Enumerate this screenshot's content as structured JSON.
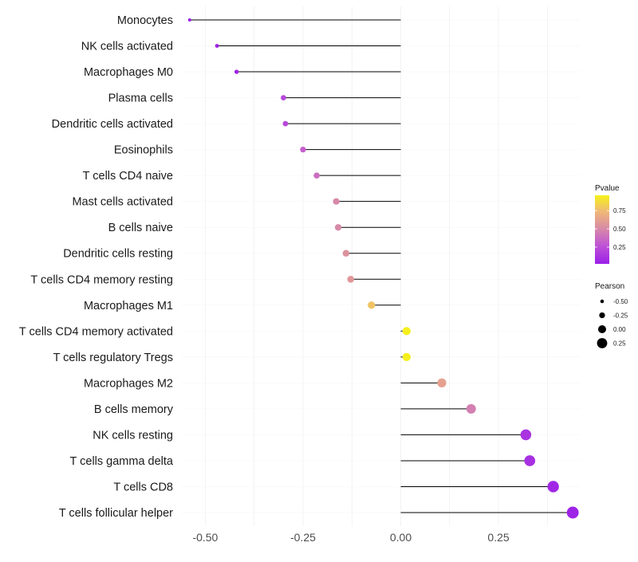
{
  "chart_data": {
    "type": "lollipop",
    "title": "",
    "xlabel": "",
    "ylabel": "",
    "xlim": [
      -0.56,
      0.46
    ],
    "x_ticks": [
      -0.5,
      -0.25,
      0.0,
      0.25
    ],
    "x_tick_labels": [
      "-0.50",
      "-0.25",
      "0.00",
      "0.25"
    ],
    "grid": true,
    "categories": [
      "Monocytes",
      "NK cells activated",
      "Macrophages M0",
      "Plasma cells",
      "Dendritic cells activated",
      "Eosinophils",
      "T cells CD4 naive",
      "Mast cells activated",
      "B cells naive",
      "Dendritic cells resting",
      "T cells CD4 memory resting",
      "Macrophages M1",
      "T cells CD4 memory activated",
      "T cells regulatory  Tregs ",
      "Macrophages M2",
      "B cells memory",
      "NK cells resting",
      "T cells gamma delta",
      "T cells CD8",
      "T cells follicular helper"
    ],
    "pearson": [
      -0.54,
      -0.47,
      -0.42,
      -0.3,
      -0.295,
      -0.25,
      -0.215,
      -0.165,
      -0.16,
      -0.14,
      -0.128,
      -0.075,
      0.015,
      0.015,
      0.105,
      0.18,
      0.32,
      0.33,
      0.39,
      0.44
    ],
    "pvalue": [
      0.03,
      0.04,
      0.05,
      0.22,
      0.22,
      0.32,
      0.38,
      0.5,
      0.5,
      0.55,
      0.57,
      0.78,
      0.95,
      0.95,
      0.62,
      0.46,
      0.12,
      0.1,
      0.06,
      0.04
    ],
    "legends": {
      "color": {
        "title": "Pvalue",
        "ticks": [
          0.75,
          0.5,
          0.25
        ],
        "tick_labels": [
          "0.75",
          "0.50",
          "0.25"
        ],
        "range": [
          0.02,
          0.96
        ],
        "colors": [
          "#9B1FE8",
          "#F5F219"
        ]
      },
      "size": {
        "title": "Pearson",
        "values": [
          -0.5,
          -0.25,
          0.0,
          0.25
        ],
        "labels": [
          "-0.50",
          "-0.25",
          "0.00",
          "0.25"
        ]
      }
    }
  }
}
